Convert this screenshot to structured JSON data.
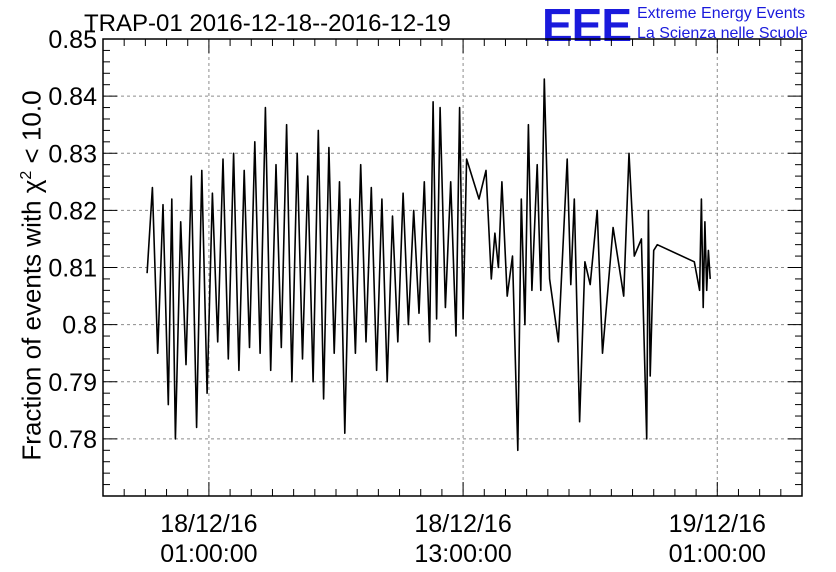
{
  "header": {
    "title": "TRAP-01 2016-12-18--2016-12-19",
    "logo_text": "EEE",
    "org_line1": "Extreme Energy Events",
    "org_line2": "La Scienza nelle Scuole"
  },
  "colors": {
    "brand": "#1a1adc",
    "line": "#000000",
    "grid": "#8c8c8c"
  },
  "chart_data": {
    "type": "line",
    "title": "TRAP-01 2016-12-18--2016-12-19",
    "ylabel_parts": [
      "Fraction of events with χ",
      "2",
      " < 10.0"
    ],
    "ylim": [
      0.77,
      0.85
    ],
    "xlim": [
      "2016-12-17 20:00",
      "2016-12-19 05:00"
    ],
    "grid": true,
    "y_ticks": [
      {
        "value": 0.78,
        "label": "0.78"
      },
      {
        "value": 0.79,
        "label": "0.79"
      },
      {
        "value": 0.8,
        "label": "0.8"
      },
      {
        "value": 0.81,
        "label": "0.81"
      },
      {
        "value": 0.82,
        "label": "0.82"
      },
      {
        "value": 0.83,
        "label": "0.83"
      },
      {
        "value": 0.84,
        "label": "0.84"
      },
      {
        "value": 0.85,
        "label": "0.85"
      }
    ],
    "x_ticks": [
      {
        "time": "2016-12-18 01:00",
        "label": [
          "18/12/16",
          "01:00:00"
        ]
      },
      {
        "time": "2016-12-18 13:00",
        "label": [
          "18/12/16",
          "13:00:00"
        ]
      },
      {
        "time": "2016-12-19 01:00",
        "label": [
          "19/12/16",
          "01:00:00"
        ]
      }
    ],
    "series": [
      {
        "points": [
          [
            "2016-12-17 22:05",
            0.809
          ],
          [
            "2016-12-17 22:20",
            0.824
          ],
          [
            "2016-12-17 22:35",
            0.795
          ],
          [
            "2016-12-17 22:50",
            0.821
          ],
          [
            "2016-12-17 23:05",
            0.786
          ],
          [
            "2016-12-17 23:15",
            0.822
          ],
          [
            "2016-12-17 23:25",
            0.78
          ],
          [
            "2016-12-17 23:40",
            0.818
          ],
          [
            "2016-12-17 23:55",
            0.793
          ],
          [
            "2016-12-18 00:10",
            0.826
          ],
          [
            "2016-12-18 00:25",
            0.782
          ],
          [
            "2016-12-18 00:40",
            0.827
          ],
          [
            "2016-12-18 00:55",
            0.788
          ],
          [
            "2016-12-18 01:10",
            0.823
          ],
          [
            "2016-12-18 01:25",
            0.797
          ],
          [
            "2016-12-18 01:40",
            0.829
          ],
          [
            "2016-12-18 01:55",
            0.794
          ],
          [
            "2016-12-18 02:10",
            0.83
          ],
          [
            "2016-12-18 02:25",
            0.792
          ],
          [
            "2016-12-18 02:40",
            0.827
          ],
          [
            "2016-12-18 02:55",
            0.796
          ],
          [
            "2016-12-18 03:10",
            0.832
          ],
          [
            "2016-12-18 03:25",
            0.795
          ],
          [
            "2016-12-18 03:40",
            0.838
          ],
          [
            "2016-12-18 03:55",
            0.792
          ],
          [
            "2016-12-18 04:10",
            0.828
          ],
          [
            "2016-12-18 04:25",
            0.796
          ],
          [
            "2016-12-18 04:40",
            0.835
          ],
          [
            "2016-12-18 04:55",
            0.79
          ],
          [
            "2016-12-18 05:10",
            0.83
          ],
          [
            "2016-12-18 05:25",
            0.794
          ],
          [
            "2016-12-18 05:40",
            0.826
          ],
          [
            "2016-12-18 05:55",
            0.79
          ],
          [
            "2016-12-18 06:10",
            0.834
          ],
          [
            "2016-12-18 06:25",
            0.787
          ],
          [
            "2016-12-18 06:40",
            0.831
          ],
          [
            "2016-12-18 06:55",
            0.795
          ],
          [
            "2016-12-18 07:10",
            0.825
          ],
          [
            "2016-12-18 07:25",
            0.781
          ],
          [
            "2016-12-18 07:40",
            0.822
          ],
          [
            "2016-12-18 07:55",
            0.795
          ],
          [
            "2016-12-18 08:10",
            0.828
          ],
          [
            "2016-12-18 08:25",
            0.797
          ],
          [
            "2016-12-18 08:40",
            0.824
          ],
          [
            "2016-12-18 08:55",
            0.792
          ],
          [
            "2016-12-18 09:10",
            0.822
          ],
          [
            "2016-12-18 09:25",
            0.79
          ],
          [
            "2016-12-18 09:40",
            0.819
          ],
          [
            "2016-12-18 09:55",
            0.797
          ],
          [
            "2016-12-18 10:10",
            0.823
          ],
          [
            "2016-12-18 10:25",
            0.8
          ],
          [
            "2016-12-18 10:40",
            0.82
          ],
          [
            "2016-12-18 10:55",
            0.802
          ],
          [
            "2016-12-18 11:10",
            0.825
          ],
          [
            "2016-12-18 11:25",
            0.797
          ],
          [
            "2016-12-18 11:35",
            0.839
          ],
          [
            "2016-12-18 11:45",
            0.801
          ],
          [
            "2016-12-18 11:55",
            0.838
          ],
          [
            "2016-12-18 12:10",
            0.803
          ],
          [
            "2016-12-18 12:25",
            0.825
          ],
          [
            "2016-12-18 12:40",
            0.798
          ],
          [
            "2016-12-18 12:50",
            0.838
          ],
          [
            "2016-12-18 13:00",
            0.801
          ],
          [
            "2016-12-18 13:10",
            0.829
          ],
          [
            "2016-12-18 13:45",
            0.822
          ],
          [
            "2016-12-18 14:05",
            0.827
          ],
          [
            "2016-12-18 14:20",
            0.808
          ],
          [
            "2016-12-18 14:30",
            0.816
          ],
          [
            "2016-12-18 14:40",
            0.81
          ],
          [
            "2016-12-18 14:50",
            0.825
          ],
          [
            "2016-12-18 15:05",
            0.805
          ],
          [
            "2016-12-18 15:20",
            0.812
          ],
          [
            "2016-12-18 15:35",
            0.778
          ],
          [
            "2016-12-18 15:45",
            0.822
          ],
          [
            "2016-12-18 15:55",
            0.8
          ],
          [
            "2016-12-18 16:05",
            0.835
          ],
          [
            "2016-12-18 16:15",
            0.806
          ],
          [
            "2016-12-18 16:30",
            0.828
          ],
          [
            "2016-12-18 16:40",
            0.806
          ],
          [
            "2016-12-18 16:50",
            0.843
          ],
          [
            "2016-12-18 17:05",
            0.808
          ],
          [
            "2016-12-18 17:30",
            0.797
          ],
          [
            "2016-12-18 17:55",
            0.829
          ],
          [
            "2016-12-18 18:05",
            0.807
          ],
          [
            "2016-12-18 18:15",
            0.822
          ],
          [
            "2016-12-18 18:30",
            0.783
          ],
          [
            "2016-12-18 18:45",
            0.811
          ],
          [
            "2016-12-18 19:00",
            0.807
          ],
          [
            "2016-12-18 19:20",
            0.82
          ],
          [
            "2016-12-18 19:35",
            0.795
          ],
          [
            "2016-12-18 20:05",
            0.817
          ],
          [
            "2016-12-18 20:35",
            0.805
          ],
          [
            "2016-12-18 20:50",
            0.83
          ],
          [
            "2016-12-18 21:05",
            0.812
          ],
          [
            "2016-12-18 21:25",
            0.815
          ],
          [
            "2016-12-18 21:40",
            0.78
          ],
          [
            "2016-12-18 21:45",
            0.82
          ],
          [
            "2016-12-18 21:50",
            0.791
          ],
          [
            "2016-12-18 22:00",
            0.813
          ],
          [
            "2016-12-18 22:10",
            0.814
          ],
          [
            "2016-12-18 23:55",
            0.811
          ],
          [
            "2016-12-19 00:10",
            0.806
          ],
          [
            "2016-12-19 00:15",
            0.822
          ],
          [
            "2016-12-19 00:20",
            0.803
          ],
          [
            "2016-12-19 00:25",
            0.818
          ],
          [
            "2016-12-19 00:30",
            0.806
          ],
          [
            "2016-12-19 00:35",
            0.813
          ],
          [
            "2016-12-19 00:40",
            0.808
          ]
        ]
      }
    ]
  }
}
